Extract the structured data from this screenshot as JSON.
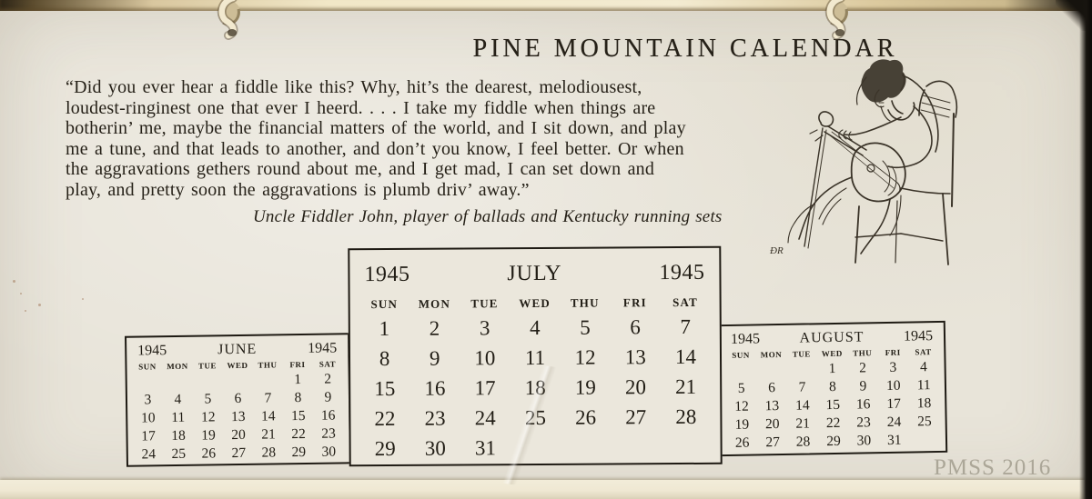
{
  "page": {
    "title": "PINE MOUNTAIN CALENDAR",
    "watermark": "PMSS 2016",
    "artist_monogram": "ĐR"
  },
  "quote": {
    "lines": [
      "“Did you ever hear a fiddle like this?  Why, hit’s the dearest, melodiousest,",
      "loudest-ringinest one that ever I heerd. . . .  I take my fiddle when things are",
      "botherin’ me, maybe the financial matters of the world, and I sit down, and play",
      "me a tune, and that leads to another, and don’t you know, I feel better.  Or when",
      "the aggravations gethers round about me, and I get mad, I can set down and",
      "play, and pretty soon the aggravations is plumb driv’ away.”"
    ],
    "attribution": "Uncle Fiddler John, player of ballads and Kentucky running sets"
  },
  "calendars": {
    "day_headers": [
      "SUN",
      "MON",
      "TUE",
      "WED",
      "THU",
      "FRI",
      "SAT"
    ],
    "june": {
      "year_left": "1945",
      "month": "JUNE",
      "year_right": "1945",
      "weeks": [
        [
          "",
          "",
          "",
          "",
          "",
          "1",
          "2"
        ],
        [
          "3",
          "4",
          "5",
          "6",
          "7",
          "8",
          "9"
        ],
        [
          "10",
          "11",
          "12",
          "13",
          "14",
          "15",
          "16"
        ],
        [
          "17",
          "18",
          "19",
          "20",
          "21",
          "22",
          "23"
        ],
        [
          "24",
          "25",
          "26",
          "27",
          "28",
          "29",
          "30"
        ]
      ]
    },
    "july": {
      "year_left": "1945",
      "month": "JULY",
      "year_right": "1945",
      "weeks": [
        [
          "1",
          "2",
          "3",
          "4",
          "5",
          "6",
          "7"
        ],
        [
          "8",
          "9",
          "10",
          "11",
          "12",
          "13",
          "14"
        ],
        [
          "15",
          "16",
          "17",
          "18",
          "19",
          "20",
          "21"
        ],
        [
          "22",
          "23",
          "24",
          "25",
          "26",
          "27",
          "28"
        ],
        [
          "29",
          "30",
          "31",
          "",
          "",
          "",
          ""
        ]
      ]
    },
    "august": {
      "year_left": "1945",
      "month": "AUGUST",
      "year_right": "1945",
      "weeks": [
        [
          "",
          "",
          "",
          "1",
          "2",
          "3",
          "4"
        ],
        [
          "5",
          "6",
          "7",
          "8",
          "9",
          "10",
          "11"
        ],
        [
          "12",
          "13",
          "14",
          "15",
          "16",
          "17",
          "18"
        ],
        [
          "19",
          "20",
          "21",
          "22",
          "23",
          "24",
          "25"
        ],
        [
          "26",
          "27",
          "28",
          "29",
          "30",
          "31",
          ""
        ]
      ]
    }
  },
  "colors": {
    "paper": "#e8e4d9",
    "paper-light": "#ebe7dc",
    "ink": "#262118",
    "border": "#1e1a13",
    "band-tan": "#d9c79f",
    "edge-dark": "#17140f",
    "watermark-gray": "#9e988a"
  }
}
